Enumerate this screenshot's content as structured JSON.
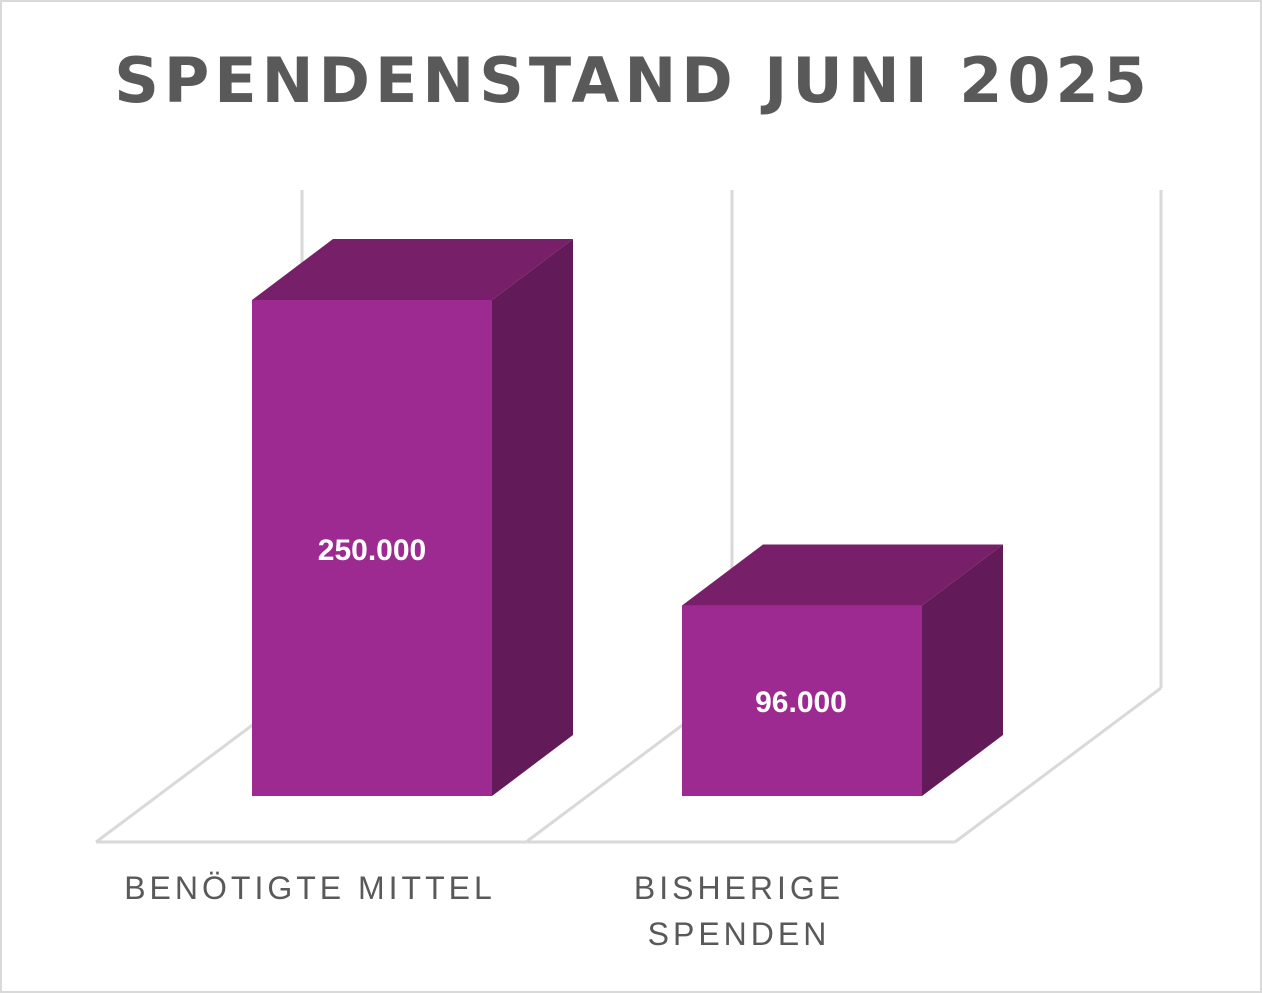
{
  "chart_data": {
    "type": "bar",
    "title": "SPENDENSTAND JUNI 2025",
    "categories": [
      "BENÖTIGTE MITTEL",
      "BISHERIGE SPENDEN"
    ],
    "category_lines": [
      [
        "BENÖTIGTE MITTEL"
      ],
      [
        "BISHERIGE",
        "SPENDEN"
      ]
    ],
    "values": [
      250000,
      96000
    ],
    "value_labels": [
      "250.000",
      "96.000"
    ],
    "xlabel": "",
    "ylabel": "",
    "ylim": [
      0,
      250000
    ],
    "style": "3d-column",
    "grid": false,
    "legend": "none",
    "colors": {
      "bar_front": "#9c2a90",
      "bar_top": "#781f6a",
      "bar_side": "#631a59",
      "grid": "#d9d9d9",
      "text": "#595959"
    }
  }
}
